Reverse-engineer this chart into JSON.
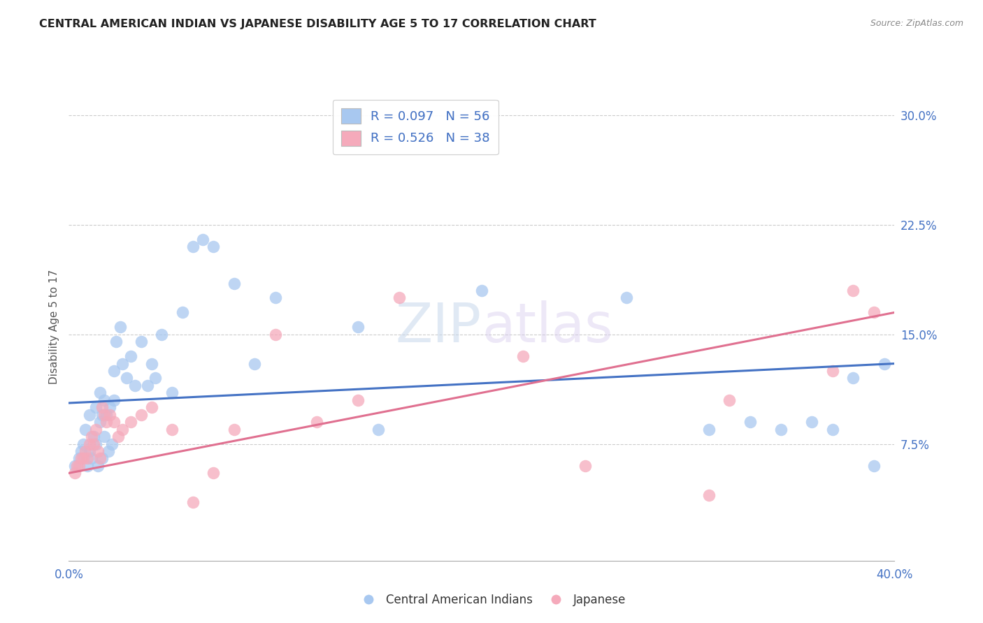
{
  "title": "CENTRAL AMERICAN INDIAN VS JAPANESE DISABILITY AGE 5 TO 17 CORRELATION CHART",
  "source": "Source: ZipAtlas.com",
  "ylabel": "Disability Age 5 to 17",
  "xlim": [
    0.0,
    0.4
  ],
  "ylim": [
    -0.005,
    0.315
  ],
  "watermark": "ZIPatlas",
  "blue_color": "#A8C8F0",
  "pink_color": "#F5AABB",
  "line_blue": "#4472C4",
  "line_pink": "#E07090",
  "background": "#FFFFFF",
  "grid_color": "#CCCCCC",
  "blue_scatter_x": [
    0.003,
    0.005,
    0.006,
    0.007,
    0.008,
    0.009,
    0.01,
    0.01,
    0.011,
    0.012,
    0.013,
    0.013,
    0.014,
    0.015,
    0.015,
    0.016,
    0.016,
    0.017,
    0.017,
    0.018,
    0.019,
    0.02,
    0.021,
    0.022,
    0.022,
    0.023,
    0.025,
    0.026,
    0.028,
    0.03,
    0.032,
    0.035,
    0.038,
    0.04,
    0.042,
    0.045,
    0.05,
    0.055,
    0.06,
    0.065,
    0.07,
    0.08,
    0.09,
    0.1,
    0.14,
    0.15,
    0.2,
    0.27,
    0.31,
    0.33,
    0.345,
    0.36,
    0.37,
    0.38,
    0.39,
    0.395
  ],
  "blue_scatter_y": [
    0.06,
    0.065,
    0.07,
    0.075,
    0.085,
    0.06,
    0.07,
    0.095,
    0.065,
    0.08,
    0.075,
    0.1,
    0.06,
    0.09,
    0.11,
    0.065,
    0.095,
    0.08,
    0.105,
    0.095,
    0.07,
    0.1,
    0.075,
    0.105,
    0.125,
    0.145,
    0.155,
    0.13,
    0.12,
    0.135,
    0.115,
    0.145,
    0.115,
    0.13,
    0.12,
    0.15,
    0.11,
    0.165,
    0.21,
    0.215,
    0.21,
    0.185,
    0.13,
    0.175,
    0.155,
    0.085,
    0.18,
    0.175,
    0.085,
    0.09,
    0.085,
    0.09,
    0.085,
    0.12,
    0.06,
    0.13
  ],
  "pink_scatter_x": [
    0.003,
    0.004,
    0.005,
    0.006,
    0.007,
    0.008,
    0.009,
    0.01,
    0.011,
    0.012,
    0.013,
    0.014,
    0.015,
    0.016,
    0.017,
    0.018,
    0.02,
    0.022,
    0.024,
    0.026,
    0.03,
    0.035,
    0.04,
    0.05,
    0.06,
    0.07,
    0.08,
    0.1,
    0.12,
    0.14,
    0.16,
    0.22,
    0.25,
    0.31,
    0.32,
    0.37,
    0.38,
    0.39
  ],
  "pink_scatter_y": [
    0.055,
    0.06,
    0.06,
    0.065,
    0.065,
    0.07,
    0.065,
    0.075,
    0.08,
    0.075,
    0.085,
    0.07,
    0.065,
    0.1,
    0.095,
    0.09,
    0.095,
    0.09,
    0.08,
    0.085,
    0.09,
    0.095,
    0.1,
    0.085,
    0.035,
    0.055,
    0.085,
    0.15,
    0.09,
    0.105,
    0.175,
    0.135,
    0.06,
    0.04,
    0.105,
    0.125,
    0.18,
    0.165
  ],
  "blue_line_x": [
    0.0,
    0.4
  ],
  "blue_line_y": [
    0.103,
    0.13
  ],
  "pink_line_x": [
    0.0,
    0.4
  ],
  "pink_line_y": [
    0.055,
    0.165
  ],
  "yticks": [
    0.075,
    0.15,
    0.225,
    0.3
  ],
  "ytick_labels": [
    "7.5%",
    "15.0%",
    "22.5%",
    "30.0%"
  ]
}
